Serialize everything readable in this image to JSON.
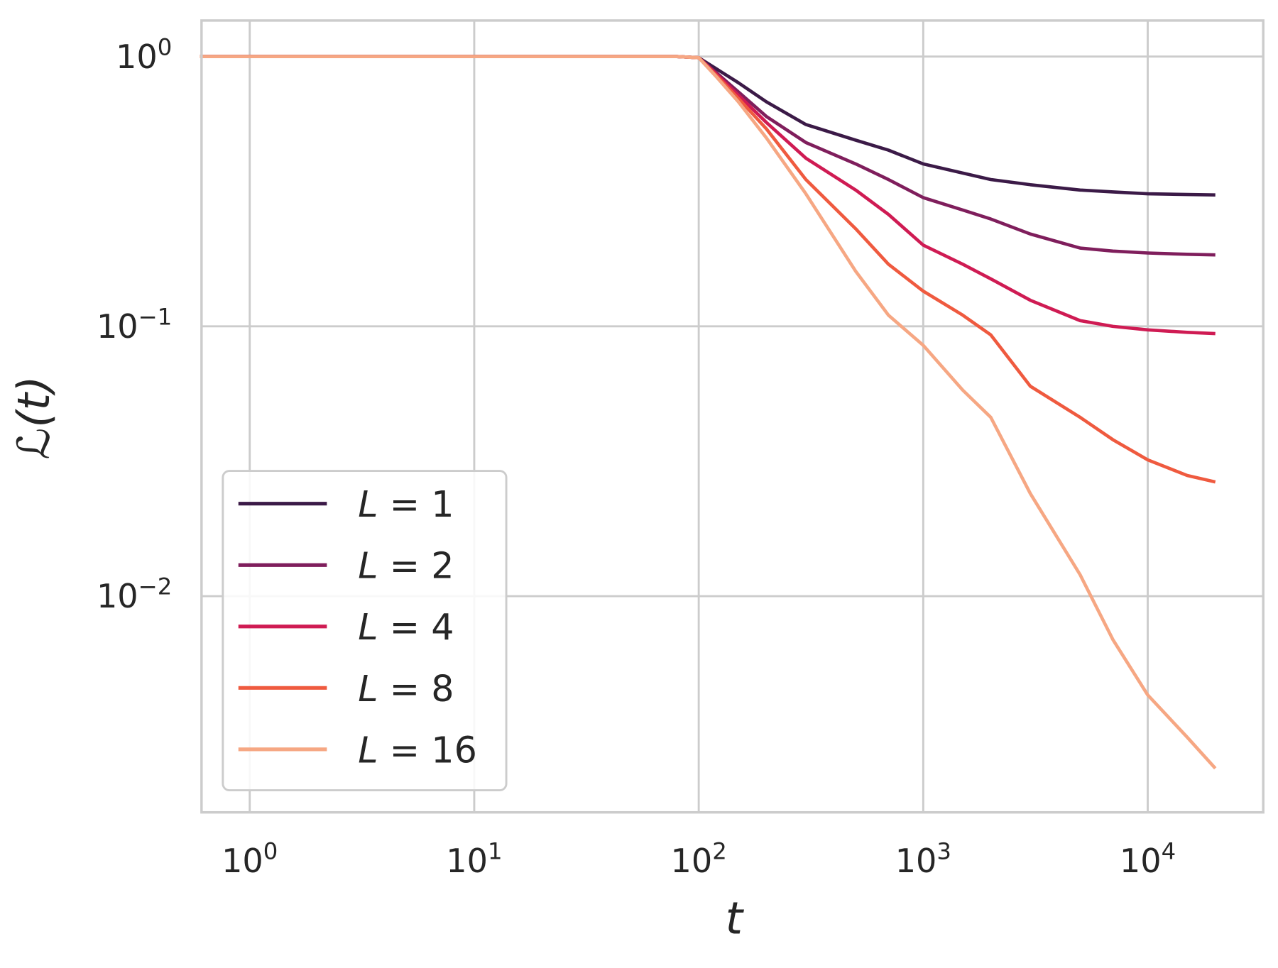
{
  "chart_data": {
    "type": "line",
    "title": "",
    "xlabel": "t",
    "ylabel": "ℒ(t)",
    "xscale": "log",
    "yscale": "log",
    "xlim": [
      0.61,
      32700
    ],
    "ylim": [
      0.00158,
      1.36
    ],
    "grid": true,
    "legend_placement": "lower-left",
    "x_ticks": [
      {
        "base": "10",
        "exp": "0",
        "value": 1
      },
      {
        "base": "10",
        "exp": "1",
        "value": 10
      },
      {
        "base": "10",
        "exp": "2",
        "value": 100
      },
      {
        "base": "10",
        "exp": "3",
        "value": 1000
      },
      {
        "base": "10",
        "exp": "4",
        "value": 10000
      }
    ],
    "y_ticks": [
      {
        "base": "10",
        "exp": "0",
        "value": 1
      },
      {
        "base": "10",
        "exp": "−1",
        "value": 0.1
      },
      {
        "base": "10",
        "exp": "−2",
        "value": 0.01
      }
    ],
    "x": [
      0.6,
      1,
      10,
      80,
      100,
      120,
      150,
      200,
      300,
      500,
      700,
      1000,
      1500,
      2000,
      3000,
      5000,
      7000,
      10000,
      15000,
      20000
    ],
    "series": [
      {
        "name": "L = 1",
        "label_var": "L",
        "label_val": "1",
        "color": "#3b1a47",
        "values": [
          1,
          1,
          1,
          1,
          0.99,
          0.9,
          0.8,
          0.68,
          0.56,
          0.49,
          0.45,
          0.4,
          0.37,
          0.35,
          0.335,
          0.32,
          0.315,
          0.31,
          0.308,
          0.307
        ]
      },
      {
        "name": "L = 2",
        "label_var": "L",
        "label_val": "2",
        "color": "#7f1e5c",
        "values": [
          1,
          1,
          1,
          1,
          0.99,
          0.87,
          0.74,
          0.6,
          0.48,
          0.4,
          0.35,
          0.3,
          0.27,
          0.25,
          0.22,
          0.195,
          0.19,
          0.187,
          0.185,
          0.184
        ]
      },
      {
        "name": "L = 4",
        "label_var": "L",
        "label_val": "4",
        "color": "#cf1b53",
        "values": [
          1,
          1,
          1,
          1,
          0.99,
          0.86,
          0.72,
          0.57,
          0.42,
          0.32,
          0.26,
          0.2,
          0.17,
          0.15,
          0.125,
          0.105,
          0.1,
          0.097,
          0.095,
          0.094
        ]
      },
      {
        "name": "L = 8",
        "label_var": "L",
        "label_val": "8",
        "color": "#ef5a3f",
        "values": [
          1,
          1,
          1,
          1,
          0.99,
          0.85,
          0.7,
          0.54,
          0.35,
          0.23,
          0.17,
          0.135,
          0.11,
          0.093,
          0.06,
          0.046,
          0.038,
          0.032,
          0.028,
          0.0265
        ]
      },
      {
        "name": "L = 16",
        "label_var": "L",
        "label_val": "16",
        "color": "#f6a783",
        "values": [
          1,
          1,
          1,
          1,
          0.99,
          0.84,
          0.68,
          0.5,
          0.31,
          0.16,
          0.11,
          0.085,
          0.058,
          0.046,
          0.024,
          0.012,
          0.0069,
          0.0043,
          0.003,
          0.0023
        ]
      }
    ]
  }
}
